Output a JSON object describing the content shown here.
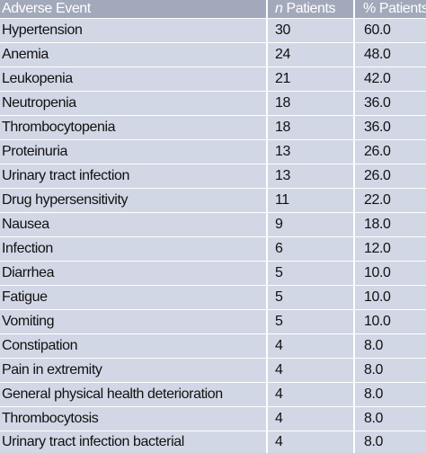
{
  "header": {
    "event": "Adverse Event",
    "n_italic": "n",
    "n_rest": "Patients",
    "pct": "% Patients"
  },
  "rows": [
    {
      "event": "Hypertension",
      "n": "30",
      "pct": "60.0"
    },
    {
      "event": "Anemia",
      "n": "24",
      "pct": "48.0"
    },
    {
      "event": "Leukopenia",
      "n": "21",
      "pct": "42.0"
    },
    {
      "event": "Neutropenia",
      "n": "18",
      "pct": "36.0"
    },
    {
      "event": "Thrombocytopenia",
      "n": "18",
      "pct": "36.0"
    },
    {
      "event": "Proteinuria",
      "n": "13",
      "pct": "26.0"
    },
    {
      "event": "Urinary tract infection",
      "n": "13",
      "pct": "26.0"
    },
    {
      "event": "Drug hypersensitivity",
      "n": "11",
      "pct": "22.0"
    },
    {
      "event": "Nausea",
      "n": "9",
      "pct": "18.0"
    },
    {
      "event": "Infection",
      "n": "6",
      "pct": "12.0"
    },
    {
      "event": "Diarrhea",
      "n": "5",
      "pct": "10.0"
    },
    {
      "event": "Fatigue",
      "n": "5",
      "pct": "10.0"
    },
    {
      "event": "Vomiting",
      "n": "5",
      "pct": "10.0"
    },
    {
      "event": "Constipation",
      "n": "4",
      "pct": "8.0"
    },
    {
      "event": "Pain in extremity",
      "n": "4",
      "pct": "8.0"
    },
    {
      "event": "General physical health deterioration",
      "n": "4",
      "pct": "8.0"
    },
    {
      "event": "Thrombocytosis",
      "n": "4",
      "pct": "8.0"
    },
    {
      "event": "Urinary tract infection bacterial",
      "n": "4",
      "pct": "8.0"
    }
  ]
}
